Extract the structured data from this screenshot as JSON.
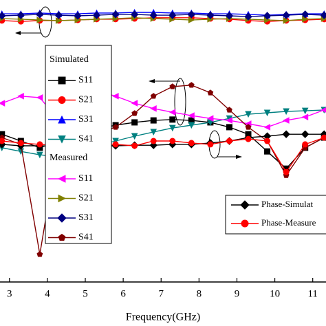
{
  "chart_data": {
    "type": "line",
    "x_label": "Frequency(GHz)",
    "xlim": [
      2.75,
      11.35
    ],
    "xticks": [
      3,
      4,
      5,
      6,
      7,
      8,
      9,
      10,
      11
    ],
    "ylim": [
      0,
      100
    ],
    "legend_headings": [
      "Simulated",
      "Measured"
    ],
    "x": [
      2.8,
      3.3,
      3.8,
      4.3,
      4.8,
      5.3,
      5.8,
      6.3,
      6.8,
      7.3,
      7.8,
      8.3,
      8.8,
      9.3,
      9.8,
      10.3,
      10.8,
      11.3
    ],
    "series": [
      {
        "name": "S11",
        "color": "#000000",
        "marker": "square",
        "group": 0,
        "values": [
          52.4,
          50,
          47.6,
          50,
          52.4,
          54.1,
          55.6,
          56.6,
          57.3,
          57.6,
          57.3,
          56.6,
          54.9,
          52.4,
          46.3,
          40.2,
          47.6,
          51.2
        ]
      },
      {
        "name": "S21",
        "color": "#ff0000",
        "marker": "circle",
        "group": 0,
        "values": [
          92.7,
          92.4,
          92.7,
          92.7,
          92.9,
          93.2,
          93.2,
          93.4,
          93.7,
          93.7,
          93.7,
          93.4,
          93.2,
          92.7,
          92.4,
          92.7,
          92.9,
          93.2
        ]
      },
      {
        "name": "S31",
        "color": "#0000ff",
        "marker": "triangle-up",
        "group": 0,
        "values": [
          95.1,
          95.1,
          95.4,
          95.1,
          95.1,
          95.4,
          95.4,
          95.6,
          95.6,
          95.4,
          95.4,
          95.1,
          95.1,
          94.9,
          94.6,
          94.9,
          95.1,
          95.1
        ]
      },
      {
        "name": "S41",
        "color": "#008080",
        "marker": "triangle-down",
        "group": 0,
        "values": [
          47.6,
          46.3,
          45.1,
          44.4,
          46.3,
          48.3,
          50,
          51.7,
          53.2,
          54.6,
          55.6,
          56.6,
          58,
          59.5,
          60,
          60.5,
          60.7,
          61
        ]
      },
      {
        "name": "S11",
        "color": "#ff00ff",
        "marker": "triangle-left",
        "group": 1,
        "values": [
          63.4,
          65.9,
          65.4,
          57.3,
          67.1,
          67.8,
          65.9,
          63.4,
          61.5,
          60.2,
          59,
          58,
          57.3,
          56.1,
          54.9,
          57.3,
          58.5,
          61
        ]
      },
      {
        "name": "S21",
        "color": "#808000",
        "marker": "triangle-right",
        "group": 1,
        "values": [
          93.4,
          93.2,
          92.9,
          92.7,
          92.9,
          93.2,
          93.4,
          93.7,
          93.4,
          93.2,
          92.9,
          93.2,
          93.4,
          93.2,
          92.9,
          92.7,
          93.2,
          93.4
        ]
      },
      {
        "name": "S31",
        "color": "#000080",
        "marker": "diamond",
        "group": 1,
        "values": [
          94.4,
          94.6,
          94.9,
          94.6,
          94.4,
          94.6,
          94.9,
          94.9,
          94.6,
          94.6,
          94.9,
          94.6,
          94.4,
          94.1,
          94.4,
          94.6,
          94.9,
          94.6
        ]
      },
      {
        "name": "S41",
        "color": "#800000",
        "marker": "pentagon",
        "group": 1,
        "values": [
          51.2,
          48.8,
          9.8,
          50,
          51.7,
          52.4,
          54.9,
          59.8,
          65.9,
          69.3,
          69.8,
          67.1,
          61,
          54.9,
          50,
          37.8,
          47.6,
          51.2
        ]
      },
      {
        "name": "Phase-Simulat",
        "color": "#000000",
        "marker": "diamond",
        "group": 2,
        "values": [
          48.8,
          48.3,
          48.3,
          48,
          48.3,
          48.3,
          48.3,
          48.5,
          48.5,
          48.8,
          48.8,
          49.3,
          50,
          51.2,
          51.7,
          52.4,
          52.4,
          52.4
        ]
      },
      {
        "name": "Phase-Measure",
        "color": "#ff0000",
        "marker": "circle",
        "group": 2,
        "values": [
          50,
          49.3,
          48.8,
          48.3,
          48.8,
          49.3,
          48.8,
          48.3,
          50,
          50,
          49.3,
          48.8,
          50,
          50.7,
          50,
          39,
          48.8,
          51.2
        ]
      }
    ]
  }
}
